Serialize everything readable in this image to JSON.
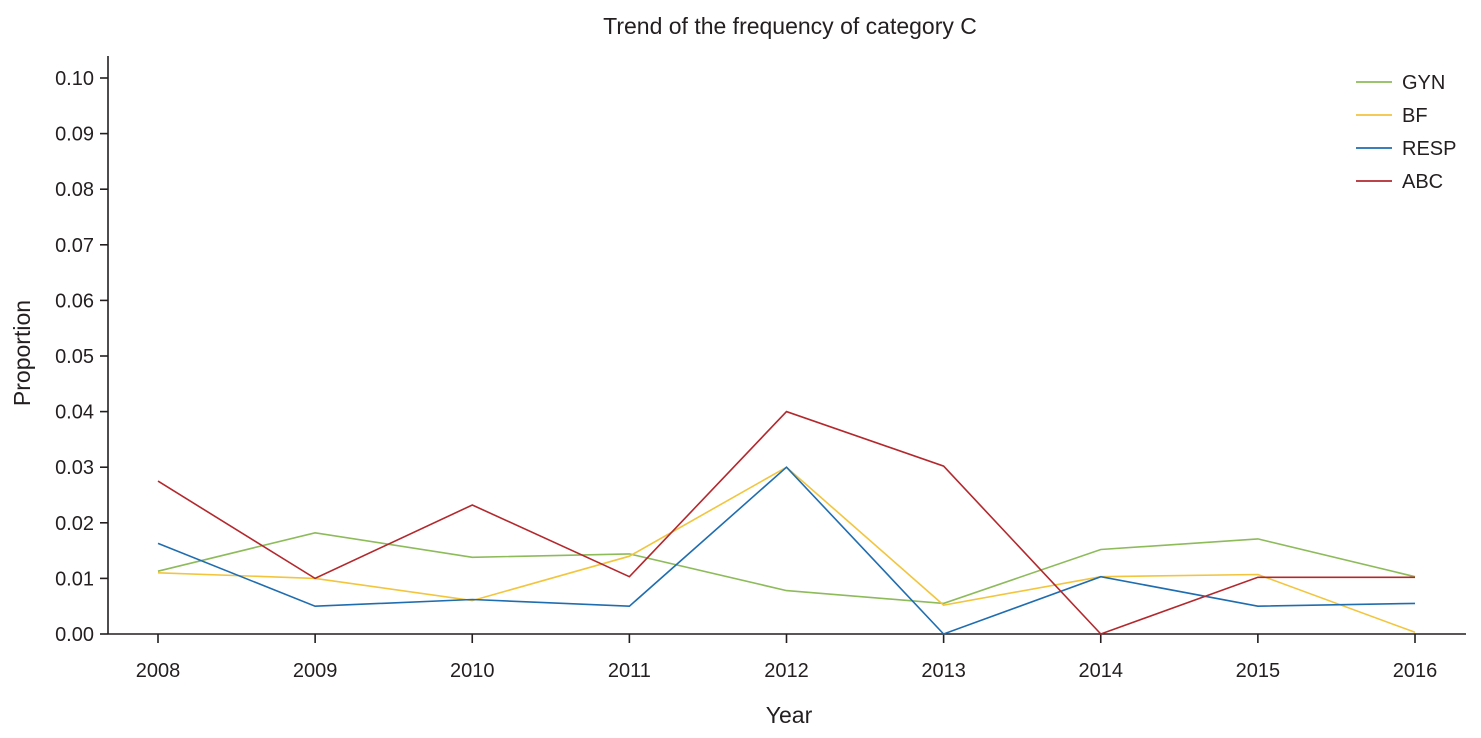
{
  "chart_data": {
    "type": "line",
    "title": "Trend of the frequency of category C",
    "xlabel": "Year",
    "ylabel": "Proportion",
    "categories": [
      "2008",
      "2009",
      "2010",
      "2011",
      "2012",
      "2013",
      "2014",
      "2015",
      "2016"
    ],
    "ylim": [
      0,
      0.1
    ],
    "yticks": [
      "0.00",
      "0.01",
      "0.02",
      "0.03",
      "0.04",
      "0.05",
      "0.06",
      "0.07",
      "0.08",
      "0.09",
      "0.10"
    ],
    "grid": false,
    "legend_position": "top-right",
    "series": [
      {
        "name": "GYN",
        "color": "#8dbb5a",
        "values": [
          0.0113,
          0.0182,
          0.0138,
          0.0144,
          0.0078,
          0.0055,
          0.0152,
          0.0171,
          0.0103
        ]
      },
      {
        "name": "BF",
        "color": "#f2c53d",
        "values": [
          0.011,
          0.01,
          0.006,
          0.014,
          0.03,
          0.0052,
          0.0103,
          0.0107,
          0.0003
        ]
      },
      {
        "name": "RESP",
        "color": "#1f6db0",
        "values": [
          0.0163,
          0.005,
          0.0062,
          0.005,
          0.03,
          0.0,
          0.0103,
          0.005,
          0.0055
        ]
      },
      {
        "name": "ABC",
        "color": "#b3282d",
        "values": [
          0.0275,
          0.01,
          0.0232,
          0.0103,
          0.04,
          0.0302,
          0.0,
          0.0102,
          0.0102
        ]
      }
    ]
  }
}
